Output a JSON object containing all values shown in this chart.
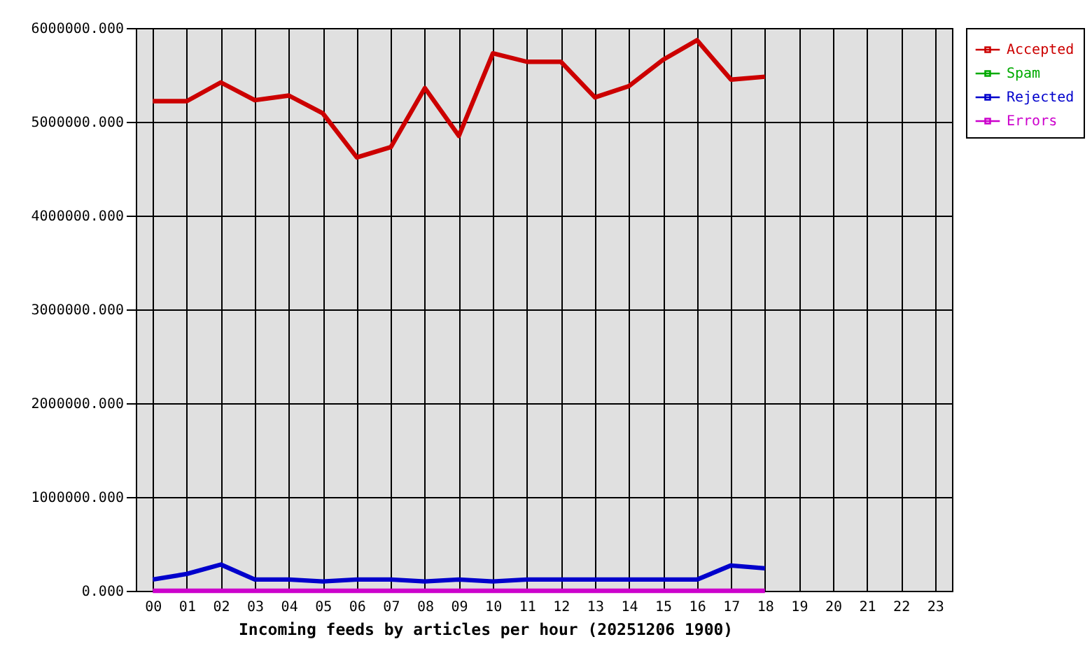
{
  "chart_data": {
    "type": "line",
    "xlabel": "Incoming feeds by articles per hour (20251206 1900)",
    "categories": [
      "00",
      "01",
      "02",
      "03",
      "04",
      "05",
      "06",
      "07",
      "08",
      "09",
      "10",
      "11",
      "12",
      "13",
      "14",
      "15",
      "16",
      "17",
      "18",
      "19",
      "20",
      "21",
      "22",
      "23"
    ],
    "series": [
      {
        "name": "Accepted",
        "color": "#cc0000",
        "values": [
          5220000,
          5220000,
          5420000,
          5230000,
          5280000,
          5090000,
          4620000,
          4730000,
          5360000,
          4850000,
          5730000,
          5640000,
          5640000,
          5260000,
          5380000,
          5660000,
          5870000,
          5450000,
          5480000,
          null,
          null,
          null,
          null,
          null
        ]
      },
      {
        "name": "Spam",
        "color": "#00aa00",
        "values": [
          null,
          null,
          null,
          null,
          null,
          null,
          null,
          null,
          null,
          null,
          null,
          null,
          null,
          null,
          null,
          null,
          null,
          null,
          null,
          null,
          null,
          null,
          null,
          null
        ]
      },
      {
        "name": "Rejected",
        "color": "#0000cc",
        "values": [
          120000,
          180000,
          280000,
          120000,
          120000,
          100000,
          120000,
          120000,
          100000,
          120000,
          100000,
          120000,
          120000,
          120000,
          120000,
          120000,
          120000,
          270000,
          240000,
          null,
          null,
          null,
          null,
          null
        ]
      },
      {
        "name": "Errors",
        "color": "#cc00cc",
        "values": [
          0,
          0,
          0,
          0,
          0,
          0,
          0,
          0,
          0,
          0,
          0,
          0,
          0,
          0,
          0,
          0,
          0,
          0,
          0,
          null,
          null,
          null,
          null,
          null
        ]
      }
    ],
    "ylim": [
      0,
      6000000
    ],
    "yticks": [
      {
        "value": 0,
        "label": "0.000"
      },
      {
        "value": 1000000,
        "label": "1000000.000"
      },
      {
        "value": 2000000,
        "label": "2000000.000"
      },
      {
        "value": 3000000,
        "label": "3000000.000"
      },
      {
        "value": 4000000,
        "label": "4000000.000"
      },
      {
        "value": 5000000,
        "label": "5000000.000"
      },
      {
        "value": 6000000,
        "label": "6000000.000"
      }
    ],
    "grid": true,
    "legend": "top right",
    "line_style": "solid"
  }
}
